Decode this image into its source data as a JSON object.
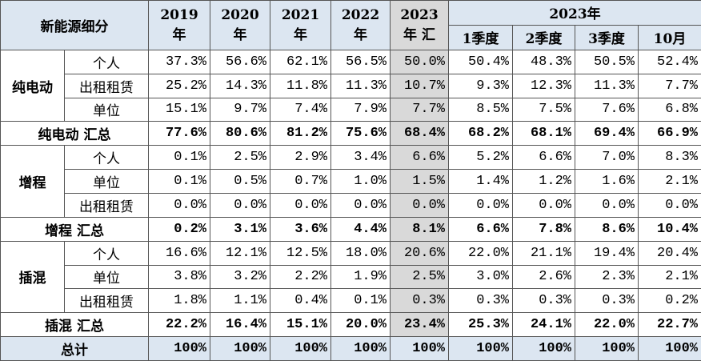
{
  "header": {
    "title": "新能源细分",
    "years": [
      [
        "2019",
        "年"
      ],
      [
        "2020",
        "年"
      ],
      [
        "2021",
        "年"
      ],
      [
        "2022",
        "年"
      ],
      [
        "2023",
        "年 汇"
      ]
    ],
    "group_title": "2023年",
    "periods": [
      "1季度",
      "2季度",
      "3季度",
      "10月"
    ]
  },
  "groups": [
    {
      "label": "纯电动",
      "rows": [
        {
          "label": "个人",
          "values": [
            "37.3%",
            "56.6%",
            "62.1%",
            "56.5%",
            "50.0%",
            "50.4%",
            "48.3%",
            "50.5%",
            "52.4%"
          ]
        },
        {
          "label": "出租租赁",
          "values": [
            "25.2%",
            "14.3%",
            "11.8%",
            "11.3%",
            "10.7%",
            "9.3%",
            "12.3%",
            "11.3%",
            "7.7%"
          ]
        },
        {
          "label": "单位",
          "values": [
            "15.1%",
            "9.7%",
            "7.4%",
            "7.9%",
            "7.7%",
            "8.5%",
            "7.5%",
            "7.6%",
            "6.8%"
          ]
        }
      ],
      "summary": {
        "label": "纯电动 汇总",
        "values": [
          "77.6%",
          "80.6%",
          "81.2%",
          "75.6%",
          "68.4%",
          "68.2%",
          "68.1%",
          "69.4%",
          "66.9%"
        ]
      }
    },
    {
      "label": "增程",
      "rows": [
        {
          "label": "个人",
          "values": [
            "0.1%",
            "2.5%",
            "2.9%",
            "3.4%",
            "6.6%",
            "5.2%",
            "6.6%",
            "7.0%",
            "8.3%"
          ]
        },
        {
          "label": "单位",
          "values": [
            "0.1%",
            "0.5%",
            "0.7%",
            "1.0%",
            "1.5%",
            "1.4%",
            "1.2%",
            "1.6%",
            "2.1%"
          ]
        },
        {
          "label": "出租租赁",
          "values": [
            "0.0%",
            "0.0%",
            "0.0%",
            "0.0%",
            "0.0%",
            "0.0%",
            "0.0%",
            "0.0%",
            "0.0%"
          ]
        }
      ],
      "summary": {
        "label": "增程 汇总",
        "values": [
          "0.2%",
          "3.1%",
          "3.6%",
          "4.4%",
          "8.1%",
          "6.6%",
          "7.8%",
          "8.6%",
          "10.4%"
        ]
      }
    },
    {
      "label": "插混",
      "rows": [
        {
          "label": "个人",
          "values": [
            "16.6%",
            "12.1%",
            "12.5%",
            "18.0%",
            "20.6%",
            "22.0%",
            "21.1%",
            "19.4%",
            "20.4%"
          ]
        },
        {
          "label": "单位",
          "values": [
            "3.8%",
            "3.2%",
            "2.2%",
            "1.9%",
            "2.5%",
            "3.0%",
            "2.6%",
            "2.3%",
            "2.1%"
          ]
        },
        {
          "label": "出租租赁",
          "values": [
            "1.8%",
            "1.1%",
            "0.4%",
            "0.1%",
            "0.3%",
            "0.3%",
            "0.3%",
            "0.3%",
            "0.2%"
          ]
        }
      ],
      "summary": {
        "label": "插混 汇总",
        "values": [
          "22.2%",
          "16.4%",
          "15.1%",
          "20.0%",
          "23.4%",
          "25.3%",
          "24.1%",
          "22.0%",
          "22.7%"
        ]
      }
    }
  ],
  "total": {
    "label": "总计",
    "values": [
      "100%",
      "100%",
      "100%",
      "100%",
      "100%",
      "100%",
      "100%",
      "100%",
      "100%"
    ]
  }
}
